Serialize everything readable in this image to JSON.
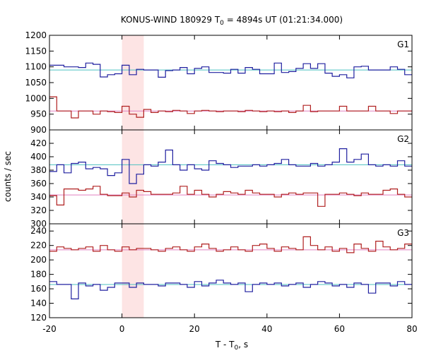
{
  "chart_data": {
    "type": "line",
    "title": {
      "main": "KONUS-WIND 180929 T",
      "sub": "0",
      "rest": " = 4894s UT (01:21:34.000)"
    },
    "xlabel": {
      "main": "T - T",
      "sub": "0",
      "rest": ", s"
    },
    "ylabel": "counts / sec",
    "xlim": [
      -20,
      80
    ],
    "x_ticks": [
      -20,
      0,
      20,
      40,
      60,
      80
    ],
    "highlight": {
      "x0": 0,
      "x1": 6,
      "color": "#fde4e4"
    },
    "bin_width": 2,
    "bin_start": -20,
    "panels": [
      {
        "label": "G1",
        "ylim": [
          900,
          1200
        ],
        "y_ticks": [
          900,
          950,
          1000,
          1050,
          1100,
          1150,
          1200
        ],
        "series": [
          {
            "color": "#2020a0",
            "line": 1090,
            "line_color": "#4cc0c0",
            "values": [
              1105,
              1105,
              1100,
              1100,
              1098,
              1112,
              1108,
              1068,
              1075,
              1078,
              1105,
              1075,
              1092,
              1090,
              1090,
              1067,
              1088,
              1090,
              1098,
              1078,
              1095,
              1100,
              1082,
              1082,
              1080,
              1092,
              1080,
              1098,
              1092,
              1078,
              1078,
              1112,
              1082,
              1085,
              1095,
              1110,
              1095,
              1110,
              1080,
              1070,
              1075,
              1065,
              1100,
              1102,
              1090,
              1090,
              1090,
              1100,
              1092,
              1075
            ]
          },
          {
            "color": "#b02020",
            "line": 960,
            "line_color": "#e080c0",
            "values": [
              1005,
              960,
              960,
              938,
              960,
              960,
              950,
              960,
              958,
              955,
              975,
              950,
              940,
              965,
              955,
              960,
              958,
              962,
              960,
              952,
              960,
              962,
              960,
              958,
              960,
              960,
              958,
              962,
              960,
              958,
              960,
              958,
              960,
              955,
              960,
              978,
              958,
              960,
              960,
              960,
              975,
              960,
              960,
              960,
              975,
              960,
              960,
              952,
              960,
              960
            ]
          }
        ]
      },
      {
        "label": "G2",
        "ylim": [
          300,
          440
        ],
        "y_ticks": [
          300,
          320,
          340,
          360,
          380,
          400,
          420
        ],
        "series": [
          {
            "color": "#2020a0",
            "line": 388,
            "line_color": "#4cc0c0",
            "values": [
              378,
              388,
              376,
              390,
              392,
              382,
              384,
              382,
              372,
              376,
              396,
              360,
              374,
              388,
              386,
              392,
              410,
              388,
              380,
              388,
              382,
              380,
              394,
              390,
              388,
              384,
              386,
              386,
              388,
              386,
              388,
              390,
              396,
              388,
              386,
              386,
              390,
              386,
              388,
              392,
              412,
              392,
              396,
              404,
              388,
              386,
              388,
              386,
              394,
              386
            ]
          },
          {
            "color": "#b02020",
            "line": 343,
            "line_color": "#e080c0",
            "values": [
              342,
              328,
              352,
              352,
              350,
              352,
              356,
              344,
              342,
              342,
              346,
              340,
              350,
              348,
              344,
              344,
              344,
              346,
              356,
              344,
              350,
              344,
              340,
              344,
              348,
              346,
              344,
              350,
              346,
              344,
              344,
              340,
              344,
              346,
              344,
              346,
              346,
              326,
              344,
              344,
              346,
              344,
              342,
              346,
              344,
              344,
              350,
              352,
              344,
              340
            ]
          }
        ]
      },
      {
        "label": "G3",
        "ylim": [
          120,
          250
        ],
        "y_ticks": [
          120,
          140,
          160,
          180,
          200,
          220,
          240
        ],
        "series": [
          {
            "color": "#b02020",
            "line": 214,
            "line_color": "#e080c0",
            "values": [
              212,
              218,
              216,
              214,
              216,
              218,
              212,
              220,
              214,
              212,
              218,
              214,
              216,
              216,
              214,
              212,
              216,
              218,
              214,
              212,
              218,
              222,
              216,
              212,
              214,
              218,
              214,
              212,
              220,
              222,
              216,
              212,
              218,
              216,
              214,
              232,
              220,
              214,
              218,
              212,
              216,
              210,
              222,
              216,
              212,
              226,
              218,
              214,
              216,
              222
            ]
          },
          {
            "color": "#2020a0",
            "line": 166,
            "line_color": "#4cc0c0",
            "values": [
              170,
              166,
              166,
              146,
              168,
              164,
              166,
              158,
              162,
              168,
              168,
              162,
              168,
              166,
              166,
              164,
              168,
              168,
              166,
              162,
              170,
              164,
              168,
              172,
              168,
              166,
              168,
              156,
              166,
              168,
              166,
              168,
              164,
              166,
              168,
              162,
              166,
              170,
              168,
              164,
              166,
              162,
              168,
              166,
              154,
              168,
              168,
              164,
              170,
              166
            ]
          }
        ]
      }
    ]
  }
}
